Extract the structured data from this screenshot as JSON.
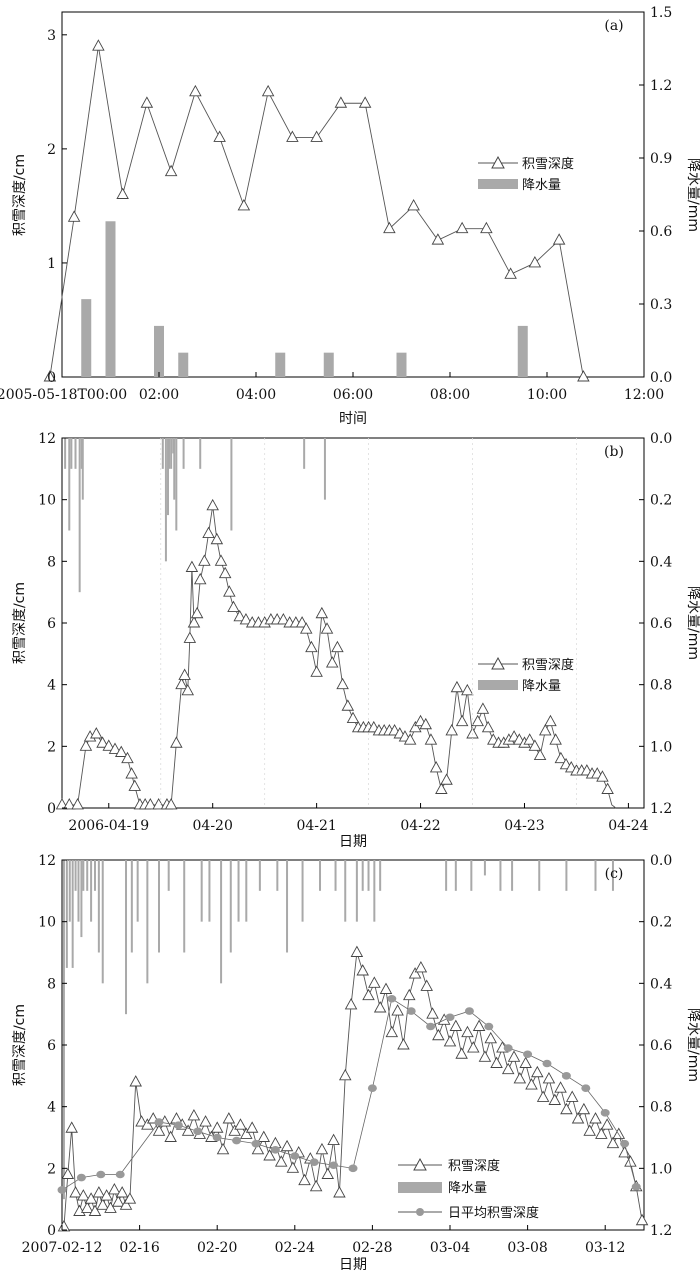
{
  "chart_data": [
    {
      "type": "line",
      "panel_label": "(a)",
      "title": "",
      "xlabel": "时间",
      "ylabel": "积雪深度/cm",
      "y2label": "降水量/mm",
      "x_ticks": [
        "2005-05-18T00:00",
        "02:00",
        "04:00",
        "06:00",
        "08:00",
        "10:00",
        "12:00"
      ],
      "y_ticks": [
        "0",
        "1",
        "2",
        "3"
      ],
      "y2_ticks": [
        "0.0",
        "0.3",
        "0.6",
        "0.9",
        "1.2",
        "1.5"
      ],
      "xlim_hours": [
        0,
        12
      ],
      "ylim": [
        0,
        3.2
      ],
      "y2lim": [
        0,
        1.5
      ],
      "y2_inverted": false,
      "legend": [
        {
          "label": "积雪深度",
          "kind": "line-triangle"
        },
        {
          "label": "降水量",
          "kind": "bar"
        }
      ],
      "legend_position": "center-right",
      "series": [
        {
          "name": "积雪深度",
          "x_hours": [
            -0.25,
            0.25,
            0.75,
            1.25,
            1.75,
            2.25,
            2.75,
            3.25,
            3.75,
            4.25,
            4.75,
            5.25,
            5.75,
            6.25,
            6.75,
            7.25,
            7.75,
            8.25,
            8.75,
            9.25,
            9.75,
            10.25,
            10.75
          ],
          "values": [
            0,
            1.4,
            2.9,
            1.6,
            2.4,
            1.8,
            2.5,
            2.1,
            1.5,
            2.5,
            2.1,
            2.1,
            2.4,
            2.4,
            1.3,
            1.5,
            1.2,
            1.3,
            1.3,
            0.9,
            1.0,
            1.2,
            0
          ]
        }
      ],
      "bars": {
        "name": "降水量",
        "x_hours": [
          0.5,
          1.0,
          2.0,
          2.5,
          4.5,
          5.5,
          7.0,
          9.5
        ],
        "values": [
          0.32,
          0.64,
          0.21,
          0.1,
          0.1,
          0.1,
          0.1,
          0.21
        ]
      },
      "grid": false
    },
    {
      "type": "line",
      "panel_label": "(b)",
      "title": "",
      "xlabel": "日期",
      "ylabel": "积雪深度/cm",
      "y2label": "降水量/mm",
      "x_ticks": [
        "2006-04-19",
        "04-20",
        "04-21",
        "04-22",
        "04-23",
        "04-24"
      ],
      "y_ticks": [
        "0",
        "2",
        "4",
        "6",
        "8",
        "10",
        "12"
      ],
      "y2_ticks": [
        "0.0",
        "0.2",
        "0.4",
        "0.6",
        "0.8",
        "1.0",
        "1.2"
      ],
      "xlim_days": [
        -0.45,
        5.15
      ],
      "ylim": [
        0,
        12
      ],
      "y2lim": [
        0,
        1.2
      ],
      "y2_inverted": true,
      "legend": [
        {
          "label": "积雪深度",
          "kind": "line-triangle"
        },
        {
          "label": "降水量",
          "kind": "bar"
        }
      ],
      "legend_position": "center-right",
      "series": [
        {
          "name": "积雪深度",
          "x_days": [
            -0.45,
            -0.38,
            -0.3,
            -0.22,
            -0.18,
            -0.12,
            -0.06,
            0.0,
            0.06,
            0.12,
            0.18,
            0.22,
            0.25,
            0.3,
            0.35,
            0.4,
            0.48,
            0.56,
            0.6,
            0.65,
            0.7,
            0.73,
            0.76,
            0.78,
            0.8,
            0.82,
            0.85,
            0.88,
            0.92,
            0.96,
            1.0,
            1.04,
            1.08,
            1.12,
            1.16,
            1.2,
            1.26,
            1.32,
            1.38,
            1.44,
            1.5,
            1.56,
            1.62,
            1.68,
            1.74,
            1.8,
            1.86,
            1.9,
            1.95,
            2.0,
            2.05,
            2.1,
            2.15,
            2.2,
            2.25,
            2.3,
            2.35,
            2.4,
            2.45,
            2.5,
            2.55,
            2.6,
            2.65,
            2.7,
            2.75,
            2.8,
            2.85,
            2.9,
            2.95,
            3.0,
            3.05,
            3.1,
            3.15,
            3.2,
            3.25,
            3.3,
            3.35,
            3.4,
            3.45,
            3.5,
            3.55,
            3.6,
            3.65,
            3.7,
            3.75,
            3.8,
            3.85,
            3.9,
            3.95,
            4.0,
            4.05,
            4.1,
            4.15,
            4.2,
            4.25,
            4.3,
            4.35,
            4.4,
            4.45,
            4.5,
            4.55,
            4.6,
            4.65,
            4.7,
            4.75,
            4.8
          ],
          "values": [
            0.1,
            0.1,
            0.1,
            2.0,
            2.3,
            2.4,
            2.1,
            2.0,
            1.9,
            1.8,
            1.6,
            1.1,
            0.7,
            0.1,
            0.1,
            0.1,
            0.1,
            0.1,
            0.1,
            2.1,
            4.0,
            4.3,
            3.8,
            5.5,
            7.8,
            6.0,
            6.3,
            7.4,
            8.0,
            8.9,
            9.8,
            8.7,
            8.0,
            7.6,
            7.0,
            6.5,
            6.2,
            6.1,
            6.0,
            6.0,
            6.0,
            6.1,
            6.1,
            6.1,
            6.0,
            6.0,
            6.0,
            5.8,
            5.2,
            4.4,
            6.3,
            5.8,
            4.7,
            5.2,
            4.0,
            3.3,
            2.9,
            2.6,
            2.6,
            2.6,
            2.6,
            2.5,
            2.5,
            2.5,
            2.5,
            2.4,
            2.3,
            2.2,
            2.6,
            2.8,
            2.7,
            2.2,
            1.3,
            0.6,
            0.9,
            2.5,
            3.9,
            2.8,
            3.8,
            2.4,
            2.8,
            3.2,
            2.6,
            2.2,
            2.1,
            2.1,
            2.2,
            2.3,
            2.2,
            2.1,
            2.2,
            2.0,
            1.7,
            2.5,
            2.8,
            2.2,
            1.6,
            1.4,
            1.3,
            1.2,
            1.2,
            1.2,
            1.1,
            1.1,
            1.0,
            0.6
          ],
          "tail": {
            "x_days": [
              4.84,
              4.88
            ],
            "values": [
              0.1,
              0.0
            ]
          }
        }
      ],
      "bars": {
        "name": "降水量",
        "x_days": [
          -0.42,
          -0.38,
          -0.36,
          -0.32,
          -0.28,
          -0.26,
          -0.25,
          0.52,
          0.55,
          0.57,
          0.58,
          0.6,
          0.62,
          0.63,
          0.65,
          0.72,
          0.88,
          1.18,
          1.88,
          2.08
        ],
        "values": [
          0.1,
          0.3,
          0.1,
          0.1,
          0.5,
          0.1,
          0.2,
          0.1,
          0.4,
          0.25,
          0.1,
          0.1,
          0.05,
          0.2,
          0.3,
          0.1,
          0.1,
          0.3,
          0.1,
          0.2
        ]
      },
      "grid": false
    },
    {
      "type": "line",
      "panel_label": "(c)",
      "title": "",
      "xlabel": "日期",
      "ylabel": "积雪深度/cm",
      "y2label": "降水量/mm",
      "x_ticks": [
        "2007-02-12",
        "02-16",
        "02-20",
        "02-24",
        "02-28",
        "03-04",
        "03-08",
        "03-12"
      ],
      "y_ticks": [
        "0",
        "2",
        "4",
        "6",
        "8",
        "10",
        "12"
      ],
      "y2_ticks": [
        "0.0",
        "0.2",
        "0.4",
        "0.6",
        "0.8",
        "1.0",
        "1.2"
      ],
      "xlim_days": [
        0,
        30
      ],
      "ylim": [
        0,
        12
      ],
      "y2lim": [
        0,
        1.2
      ],
      "y2_inverted": true,
      "legend": [
        {
          "label": "积雪深度",
          "kind": "line-triangle"
        },
        {
          "label": "降水量",
          "kind": "bar"
        },
        {
          "label": "日平均积雪深度",
          "kind": "line-dot"
        }
      ],
      "legend_position": "bottom-center",
      "series": [
        {
          "name": "积雪深度",
          "x_days": [
            0.1,
            0.3,
            0.5,
            0.7,
            0.9,
            1.1,
            1.3,
            1.5,
            1.7,
            1.9,
            2.1,
            2.3,
            2.5,
            2.7,
            2.9,
            3.1,
            3.3,
            3.5,
            3.8,
            4.1,
            4.4,
            4.7,
            5.0,
            5.3,
            5.6,
            5.9,
            6.2,
            6.5,
            6.8,
            7.1,
            7.4,
            7.7,
            8.0,
            8.3,
            8.6,
            8.9,
            9.2,
            9.5,
            9.8,
            10.1,
            10.4,
            10.7,
            11.0,
            11.3,
            11.6,
            11.9,
            12.2,
            12.5,
            12.8,
            13.1,
            13.4,
            13.7,
            14.0,
            14.3,
            14.6,
            14.9,
            15.2,
            15.5,
            15.8,
            16.1,
            16.4,
            16.7,
            17.0,
            17.3,
            17.6,
            17.9,
            18.2,
            18.5,
            18.8,
            19.1,
            19.4,
            19.7,
            20.0,
            20.3,
            20.6,
            20.9,
            21.2,
            21.5,
            21.8,
            22.1,
            22.4,
            22.7,
            23.0,
            23.3,
            23.6,
            23.9,
            24.2,
            24.5,
            24.8,
            25.1,
            25.4,
            25.7,
            26.0,
            26.3,
            26.6,
            26.9,
            27.2,
            27.5,
            27.8,
            28.1,
            28.4,
            28.7,
            29.0,
            29.3,
            29.6,
            29.9
          ],
          "values": [
            0.1,
            1.8,
            3.3,
            1.2,
            0.6,
            1.1,
            0.7,
            1.0,
            0.6,
            1.2,
            0.8,
            1.1,
            0.7,
            1.3,
            0.9,
            1.2,
            0.8,
            1.0,
            4.8,
            3.5,
            3.4,
            3.6,
            3.2,
            3.5,
            3.0,
            3.6,
            3.4,
            3.2,
            3.7,
            3.1,
            3.5,
            3.0,
            3.3,
            2.6,
            3.6,
            3.2,
            3.4,
            3.1,
            3.3,
            2.6,
            3.0,
            2.4,
            2.8,
            2.2,
            2.7,
            2.0,
            2.5,
            1.6,
            2.3,
            1.4,
            2.6,
            1.8,
            2.9,
            1.2,
            5.0,
            7.3,
            9.0,
            8.4,
            7.6,
            8.0,
            7.2,
            7.8,
            6.4,
            7.1,
            6.0,
            7.6,
            8.3,
            8.5,
            7.9,
            7.0,
            6.3,
            6.8,
            6.1,
            6.6,
            5.7,
            6.4,
            5.9,
            6.6,
            5.6,
            6.2,
            5.4,
            5.9,
            5.2,
            5.6,
            4.9,
            5.4,
            4.7,
            5.1,
            4.3,
            4.9,
            4.2,
            4.6,
            3.9,
            4.3,
            3.6,
            3.9,
            3.2,
            3.6,
            3.1,
            3.4,
            2.8,
            3.1,
            2.5,
            2.2,
            1.4,
            0.3
          ]
        },
        {
          "name": "日平均积雪深度",
          "x_days": [
            0.0,
            1.0,
            2.0,
            3.0,
            5.0,
            6.0,
            7.0,
            8.0,
            9.0,
            10.0,
            11.0,
            12.0,
            13.0,
            14.0,
            15.0,
            16.0,
            17.0,
            18.0,
            19.0,
            20.0,
            21.0,
            22.0,
            23.0,
            24.0,
            25.0,
            26.0,
            27.0,
            28.0,
            29.0,
            29.6
          ],
          "values": [
            1.3,
            1.7,
            1.8,
            1.8,
            3.5,
            3.4,
            3.2,
            3.0,
            2.9,
            2.8,
            2.6,
            2.4,
            2.2,
            2.1,
            2.0,
            4.6,
            7.5,
            7.1,
            6.6,
            6.9,
            7.1,
            6.6,
            5.9,
            5.7,
            5.4,
            5.0,
            4.6,
            3.8,
            2.8,
            1.4
          ]
        }
      ],
      "bars": {
        "name": "降水量",
        "x_days": [
          0.1,
          0.25,
          0.4,
          0.55,
          0.7,
          0.85,
          1.0,
          1.1,
          1.3,
          1.5,
          1.7,
          1.9,
          2.1,
          3.3,
          3.6,
          3.9,
          4.4,
          5.0,
          5.5,
          6.3,
          7.2,
          7.6,
          8.2,
          8.7,
          9.1,
          9.5,
          10.2,
          11.1,
          11.6,
          12.4,
          13.3,
          14.1,
          14.6,
          15.2,
          15.5,
          15.8,
          16.1,
          16.4,
          19.8,
          20.3,
          21.1,
          21.8,
          22.6,
          23.2,
          24.6,
          26.0,
          27.5,
          28.4
        ],
        "values": [
          1.1,
          0.35,
          0.2,
          0.35,
          0.1,
          0.2,
          0.25,
          0.1,
          0.1,
          0.2,
          0.1,
          0.3,
          0.4,
          0.5,
          0.3,
          0.2,
          0.4,
          0.3,
          0.1,
          0.3,
          0.2,
          0.2,
          0.4,
          0.3,
          0.2,
          0.2,
          0.1,
          0.1,
          0.3,
          0.2,
          0.1,
          0.1,
          0.2,
          0.2,
          0.1,
          0.1,
          0.2,
          0.1,
          0.1,
          0.1,
          0.1,
          0.05,
          0.1,
          0.1,
          0.1,
          0.1,
          0.1,
          0.1
        ]
      },
      "grid": false
    }
  ],
  "colors": {
    "line": "#555555",
    "bar": "#a9a9a9",
    "dot": "#999999",
    "axis": "#000000"
  }
}
